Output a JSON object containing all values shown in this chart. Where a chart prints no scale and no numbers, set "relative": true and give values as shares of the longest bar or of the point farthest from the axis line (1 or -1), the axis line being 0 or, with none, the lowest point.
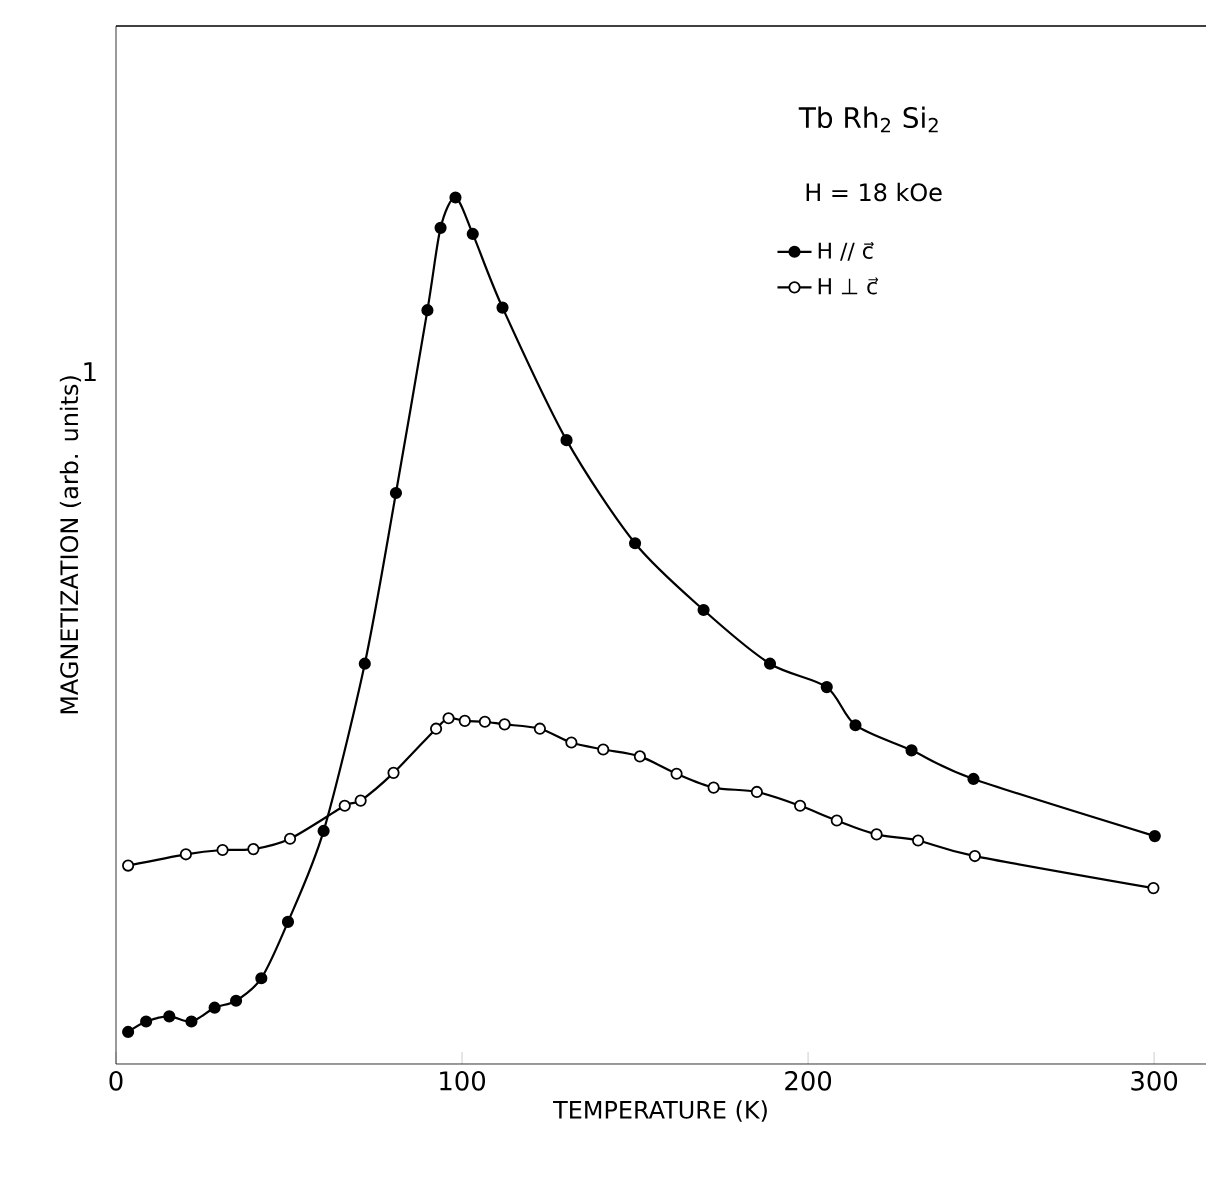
{
  "chart_data": {
    "type": "line",
    "title": "Tb Rh$_{2}$ Si$_{2}$",
    "subtitle": "H = 18 kOe",
    "xlabel": "TEMPERATURE    (K)",
    "ylabel": "MAGNETIZATION   (arb. units)",
    "annotations": [
      "1"
    ],
    "relative": true,
    "xlim": [
      0,
      315
    ],
    "xticks": [
      0,
      100,
      200,
      300
    ],
    "grid": false,
    "legend": "top right",
    "marker": "circle",
    "line_style": "solid",
    "series": [
      {
        "name": "H // c⃗",
        "color": "#000000",
        "x": [
          3.5,
          8.7,
          15.4,
          21.8,
          28.5,
          34.7,
          42,
          49.7,
          60,
          71.9,
          80.9,
          90,
          93.8,
          98.1,
          103.1,
          111.7,
          130.2,
          150,
          169.8,
          189,
          205.4,
          213.7,
          229.9,
          247.8,
          300.2
        ],
        "values": [
          0.037,
          0.049,
          0.055,
          0.049,
          0.065,
          0.073,
          0.099,
          0.164,
          0.269,
          0.462,
          0.659,
          0.87,
          0.965,
          1,
          0.958,
          0.873,
          0.72,
          0.601,
          0.524,
          0.462,
          0.435,
          0.391,
          0.362,
          0.329,
          0.263
        ]
      },
      {
        "name": "H ⊥ c⃗",
        "color": "#000000",
        "x": [
          3.5,
          20.2,
          30.8,
          39.7,
          50.3,
          66.1,
          70.7,
          80.2,
          92.5,
          96.1,
          100.8,
          106.6,
          112.3,
          122.5,
          131.6,
          140.8,
          151.4,
          162,
          172.7,
          185.2,
          197.7,
          208.3,
          219.8,
          231.8,
          248.2,
          299.8
        ],
        "values": [
          0.229,
          0.242,
          0.247,
          0.248,
          0.26,
          0.298,
          0.304,
          0.336,
          0.387,
          0.399,
          0.396,
          0.395,
          0.392,
          0.387,
          0.371,
          0.363,
          0.355,
          0.335,
          0.319,
          0.314,
          0.298,
          0.281,
          0.265,
          0.258,
          0.24,
          0.203
        ]
      }
    ]
  }
}
